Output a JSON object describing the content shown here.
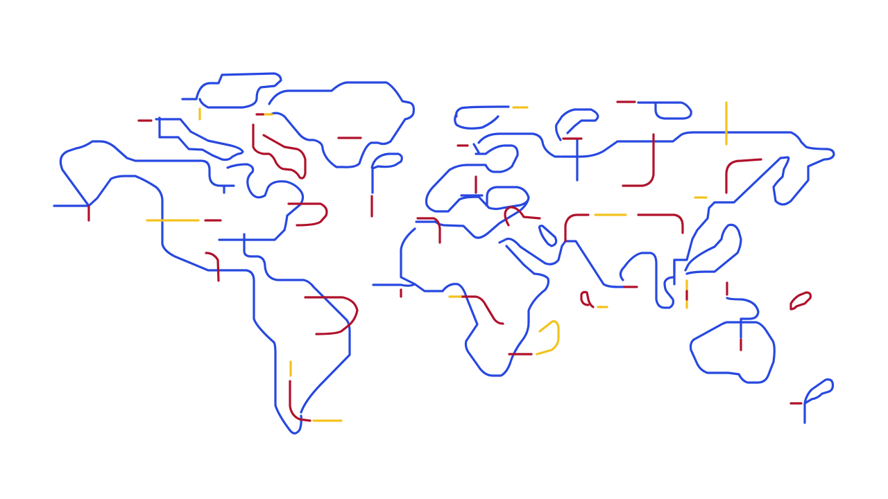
{
  "map": {
    "style": "stylized world map drawn as transit-style line segments",
    "colors": {
      "background": "#ffffff",
      "primary": "#2748e0",
      "secondary": "#b0112b",
      "tertiary": "#f4c21d"
    },
    "line_colors": [
      "primary",
      "secondary",
      "tertiary"
    ]
  }
}
